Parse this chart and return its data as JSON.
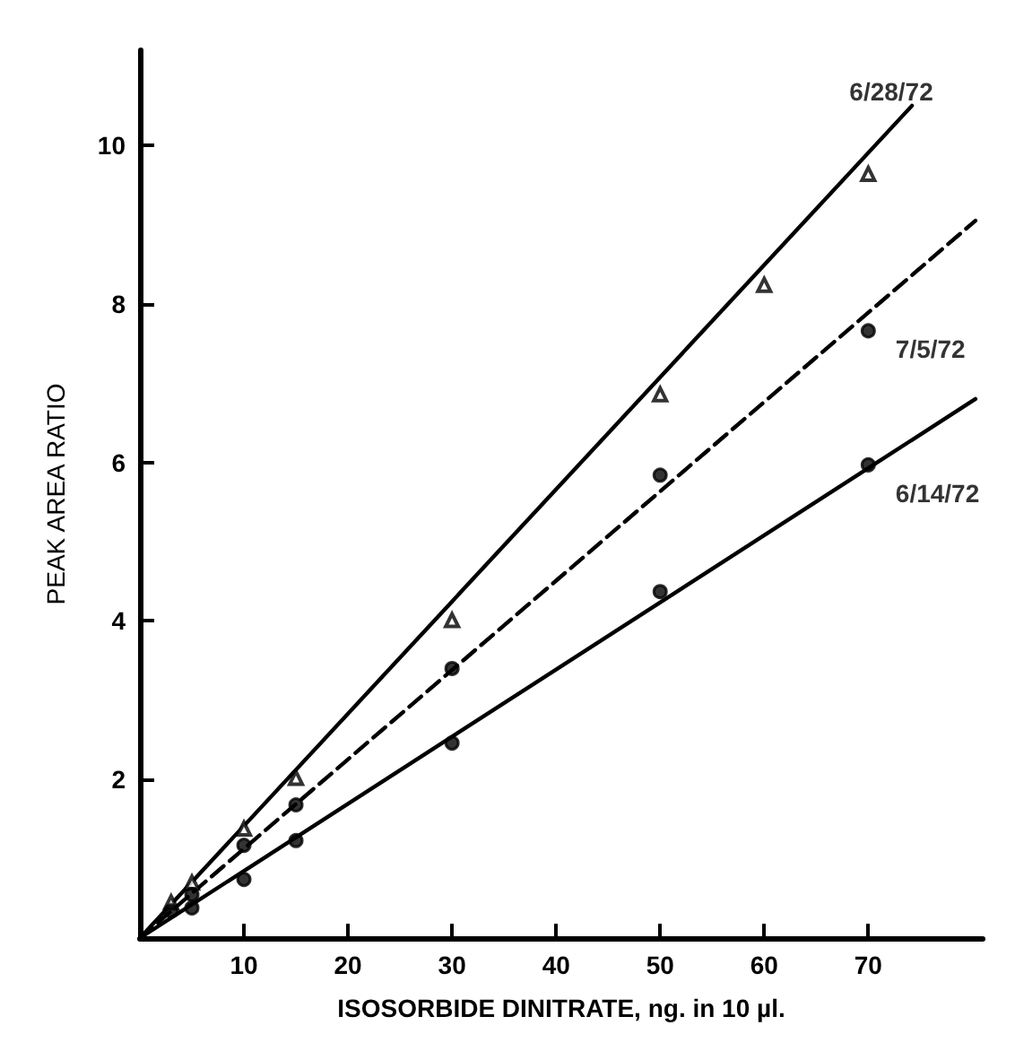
{
  "chart_data": {
    "type": "scatter",
    "xlabel": "ISOSORBIDE DINITRATE, ng. in 10 µl.",
    "ylabel": "PEAK AREA RATIO",
    "xlim": [
      0,
      81
    ],
    "ylim": [
      0,
      11.2
    ],
    "xticks": [
      10,
      20,
      30,
      40,
      50,
      60,
      70
    ],
    "yticks": [
      2,
      4,
      6,
      8,
      10
    ],
    "grid": false,
    "legend": false,
    "series": [
      {
        "name": "6/28/72",
        "marker": "triangle",
        "color": "#000000",
        "x": [
          3,
          5,
          10,
          15,
          30,
          50,
          60,
          70
        ],
        "values": [
          0.45,
          0.7,
          1.38,
          2.02,
          4.01,
          6.86,
          8.24,
          9.64
        ]
      },
      {
        "name": "7/5/72",
        "marker": "circle",
        "color": "#000000",
        "x": [
          3,
          5,
          10,
          15,
          30,
          50,
          70
        ],
        "values": [
          0.34,
          0.55,
          1.17,
          1.68,
          3.4,
          5.84,
          7.66
        ]
      },
      {
        "name": "6/14/72",
        "marker": "circle",
        "color": "#000000",
        "x": [
          5,
          10,
          15,
          30,
          50,
          70
        ],
        "values": [
          0.38,
          0.74,
          1.23,
          2.46,
          4.37,
          5.97
        ]
      },
      {
        "type": "line",
        "marker": "none",
        "line_style": "solid",
        "color": "#000000",
        "x": [
          0,
          74.2
        ],
        "values": [
          0,
          10.5
        ]
      },
      {
        "type": "line",
        "marker": "none",
        "line_style": "dashed",
        "color": "#000000",
        "x": [
          0,
          80.3
        ],
        "values": [
          0,
          9.05
        ]
      },
      {
        "type": "line",
        "marker": "none",
        "line_style": "solid",
        "color": "#000000",
        "x": [
          0,
          80.3
        ],
        "values": [
          0,
          6.8
        ]
      }
    ]
  }
}
